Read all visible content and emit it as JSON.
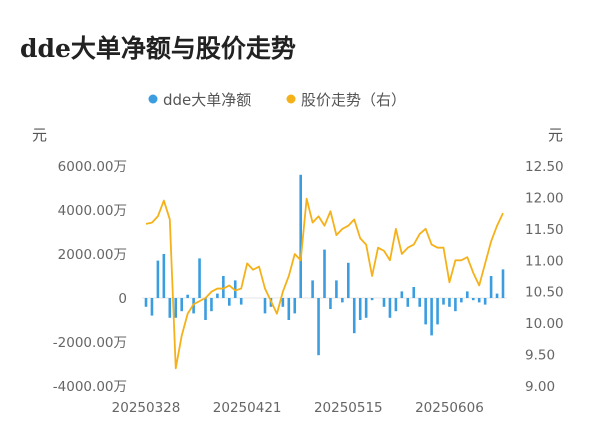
{
  "chart_data": {
    "type": "bar+line",
    "title": "dde大单净额与股价走势",
    "legend": [
      {
        "label": "dde大单净额",
        "color": "#3b9de0",
        "series": "bars"
      },
      {
        "label": "股价走势（右）",
        "color": "#f5b119",
        "series": "line"
      }
    ],
    "left_unit": "元",
    "right_unit": "元",
    "left_ticks": [
      {
        "value": 6000,
        "label": "6000.00万"
      },
      {
        "value": 4000,
        "label": "4000.00万"
      },
      {
        "value": 2000,
        "label": "2000.00万"
      },
      {
        "value": 0,
        "label": "0"
      },
      {
        "value": -2000,
        "label": "-2000.00万"
      },
      {
        "value": -4000,
        "label": "-4000.00万"
      }
    ],
    "right_ticks": [
      {
        "value": 12.5,
        "label": "12.50"
      },
      {
        "value": 12.0,
        "label": "12.00"
      },
      {
        "value": 11.5,
        "label": "11.50"
      },
      {
        "value": 11.0,
        "label": "11.00"
      },
      {
        "value": 10.5,
        "label": "10.50"
      },
      {
        "value": 10.0,
        "label": "10.00"
      },
      {
        "value": 9.5,
        "label": "9.50"
      },
      {
        "value": 9.0,
        "label": "9.00"
      }
    ],
    "left_ylim": [
      -4000,
      6000
    ],
    "right_ylim": [
      9.0,
      12.5
    ],
    "x_labels": [
      {
        "index": 0,
        "label": "20250328"
      },
      {
        "index": 17,
        "label": "20250421"
      },
      {
        "index": 34,
        "label": "20250515"
      },
      {
        "index": 51,
        "label": "20250606"
      }
    ],
    "bars": [
      -400,
      -800,
      1700,
      2000,
      -900,
      -900,
      -600,
      150,
      -700,
      1800,
      -1000,
      -600,
      200,
      1000,
      -350,
      800,
      -300,
      0,
      0,
      0,
      -700,
      -400,
      0,
      -400,
      -1000,
      -700,
      5600,
      0,
      800,
      -2600,
      2200,
      -500,
      800,
      -200,
      1600,
      -1600,
      -1000,
      -900,
      -100,
      0,
      -400,
      -900,
      -600,
      300,
      -400,
      500,
      -400,
      -1200,
      -1700,
      -1200,
      -300,
      -400,
      -600,
      -200,
      300,
      -100,
      -200,
      -300,
      1000,
      200,
      1300
    ],
    "price": [
      11.58,
      11.6,
      11.7,
      11.95,
      11.65,
      9.28,
      9.8,
      10.15,
      10.3,
      10.35,
      10.4,
      10.5,
      10.55,
      10.55,
      10.6,
      10.52,
      10.55,
      10.95,
      10.85,
      10.9,
      10.55,
      10.35,
      10.15,
      10.5,
      10.75,
      11.1,
      11.0,
      11.98,
      11.6,
      11.7,
      11.55,
      11.78,
      11.4,
      11.5,
      11.55,
      11.65,
      11.35,
      11.25,
      10.75,
      11.2,
      11.15,
      11.0,
      11.5,
      11.1,
      11.2,
      11.25,
      11.42,
      11.5,
      11.25,
      11.2,
      11.2,
      10.65,
      11.0,
      11.0,
      11.05,
      10.8,
      10.6,
      10.95,
      11.3,
      11.55,
      11.75
    ]
  }
}
